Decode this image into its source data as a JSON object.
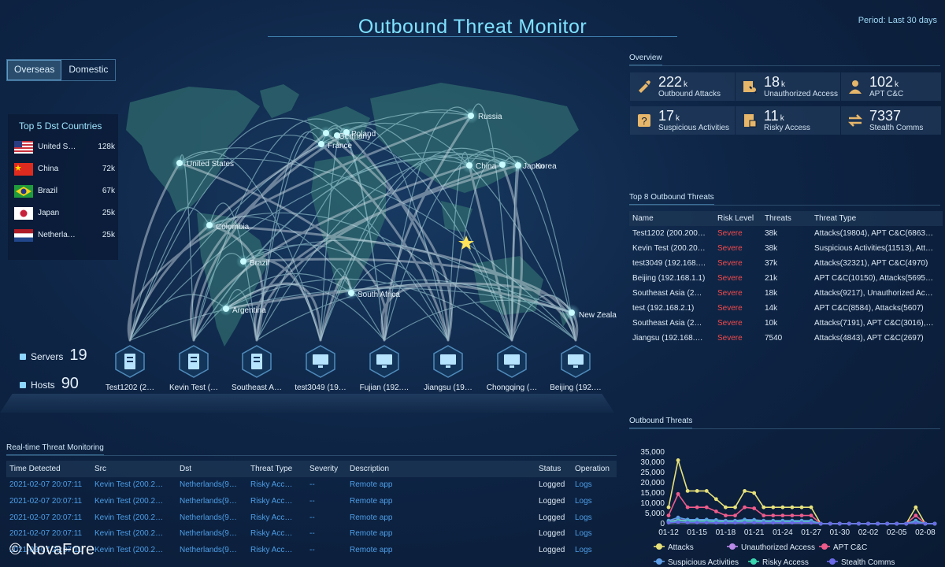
{
  "header": {
    "title": "Outbound Threat Monitor",
    "period": "Period: Last 30 days"
  },
  "region_tabs": [
    {
      "label": "Overseas",
      "active": true
    },
    {
      "label": "Domestic",
      "active": false
    }
  ],
  "top5": {
    "title": "Top 5 Dst Countries",
    "rows": [
      {
        "name": "United S…",
        "value": "128k",
        "flag": "us-flag-icon"
      },
      {
        "name": "China",
        "value": "72k",
        "flag": "cn-flag-icon"
      },
      {
        "name": "Brazil",
        "value": "67k",
        "flag": "br-flag-icon"
      },
      {
        "name": "Japan",
        "value": "25k",
        "flag": "jp-flag-icon"
      },
      {
        "name": "Netherla…",
        "value": "25k",
        "flag": "nl-flag-icon"
      }
    ]
  },
  "map": {
    "labels": [
      "Russia",
      "United States",
      "France",
      "Poland",
      "Germany",
      "China",
      "Japan",
      "Korea",
      "Colombia",
      "Brazil",
      "Argentina",
      "South Africa",
      "New Zeala"
    ]
  },
  "assets": {
    "servers_label": "Servers",
    "servers": "19",
    "hosts_label": "Hosts",
    "hosts": "90"
  },
  "nodes": [
    {
      "label": "Test1202 (2…",
      "type": "server-icon"
    },
    {
      "label": "Kevin Test (…",
      "type": "server-icon"
    },
    {
      "label": "Southeast A…",
      "type": "server-icon"
    },
    {
      "label": "test3049 (19…",
      "type": "monitor-icon"
    },
    {
      "label": "Fujian (192.…",
      "type": "monitor-icon"
    },
    {
      "label": "Jiangsu (19…",
      "type": "monitor-icon"
    },
    {
      "label": "Chongqing (…",
      "type": "monitor-icon"
    },
    {
      "label": "Beijing (192.…",
      "type": "monitor-icon"
    }
  ],
  "overview": {
    "title": "Overview",
    "cards": [
      {
        "num": "222",
        "unit": "k",
        "label": "Outbound Attacks",
        "icon": "attack-icon"
      },
      {
        "num": "18",
        "unit": "k",
        "label": "Unauthorized Access",
        "icon": "unauthorized-icon"
      },
      {
        "num": "102",
        "unit": "k",
        "label": "APT C&C",
        "icon": "apt-icon"
      },
      {
        "num": "17",
        "unit": "k",
        "label": "Suspicious Activities",
        "icon": "suspicious-icon"
      },
      {
        "num": "11",
        "unit": "k",
        "label": "Risky Access",
        "icon": "risky-icon"
      },
      {
        "num": "7337",
        "unit": "",
        "label": "Stealth Comms",
        "icon": "stealth-icon"
      }
    ]
  },
  "top8": {
    "title": "Top 8 Outbound Threats",
    "columns": [
      "Name",
      "Risk Level",
      "Threats",
      "Threat Type"
    ],
    "rows": [
      [
        "Test1202 (200.200…",
        "Severe",
        "38k",
        "Attacks(19804), APT C&C(6863…"
      ],
      [
        "Kevin Test (200.20…",
        "Severe",
        "38k",
        "Suspicious Activities(11513), Att…"
      ],
      [
        "test3049 (192.168.…",
        "Severe",
        "37k",
        "Attacks(32321), APT C&C(4970)"
      ],
      [
        "Beijing (192.168.1.1)",
        "Severe",
        "21k",
        "APT C&C(10150), Attacks(5695…"
      ],
      [
        "Southeast Asia (2…",
        "Severe",
        "18k",
        "Attacks(9217), Unauthorized Ac…"
      ],
      [
        "test (192.168.2.1)",
        "Severe",
        "14k",
        "APT C&C(8584), Attacks(5607)"
      ],
      [
        "Southeast Asia (2…",
        "Severe",
        "10k",
        "Attacks(7191), APT C&C(3016),…"
      ],
      [
        "Jiangsu (192.168.…",
        "Severe",
        "7540",
        "Attacks(4843), APT C&C(2697)"
      ]
    ]
  },
  "realtime": {
    "title": "Real-time Threat Monitoring",
    "columns": [
      "Time Detected",
      "Src",
      "Dst",
      "Threat Type",
      "Severity",
      "Description",
      "Status",
      "Operation"
    ],
    "rows": [
      [
        "2021-02-07 20:07:11",
        "Kevin Test (200.2…",
        "Netherlands(9…",
        "Risky Acc…",
        "--",
        "Remote app",
        "Logged",
        "Logs"
      ],
      [
        "2021-02-07 20:07:11",
        "Kevin Test (200.2…",
        "Netherlands(9…",
        "Risky Acc…",
        "--",
        "Remote app",
        "Logged",
        "Logs"
      ],
      [
        "2021-02-07 20:07:11",
        "Kevin Test (200.2…",
        "Netherlands(9…",
        "Risky Acc…",
        "--",
        "Remote app",
        "Logged",
        "Logs"
      ],
      [
        "2021-02-07 20:07:11",
        "Kevin Test (200.2…",
        "Netherlands(9…",
        "Risky Acc…",
        "--",
        "Remote app",
        "Logged",
        "Logs"
      ],
      [
        "2021-02-07 20:07:11",
        "Kevin Test (200.2…",
        "Netherlands(9…",
        "Risky Acc…",
        "--",
        "Remote app",
        "Logged",
        "Logs"
      ]
    ]
  },
  "watermark": "© NovaFore",
  "chart_data": {
    "type": "line",
    "title": "Outbound Threats",
    "x": [
      "01-12",
      "01-13",
      "01-14",
      "01-15",
      "01-16",
      "01-17",
      "01-18",
      "01-19",
      "01-20",
      "01-21",
      "01-22",
      "01-23",
      "01-24",
      "01-25",
      "01-26",
      "01-27",
      "01-28",
      "01-29",
      "01-30",
      "01-31",
      "02-01",
      "02-02",
      "02-03",
      "02-04",
      "02-05",
      "02-06",
      "02-07",
      "02-08",
      "02-09"
    ],
    "x_tick_labels": [
      "01-12",
      "01-15",
      "01-18",
      "01-21",
      "01-24",
      "01-27",
      "01-30",
      "02-02",
      "02-05",
      "02-08"
    ],
    "y_tick_labels": [
      "35,000",
      "30,000",
      "25,000",
      "20,000",
      "15,000",
      "10,000",
      "5,000",
      "0"
    ],
    "ylim": [
      0,
      35000
    ],
    "series": [
      {
        "name": "Attacks",
        "color": "#e8e27a",
        "values": [
          8000,
          31000,
          16000,
          16000,
          16000,
          12000,
          8000,
          8000,
          16000,
          15000,
          8000,
          8000,
          8000,
          8000,
          8000,
          8000,
          0,
          0,
          0,
          0,
          0,
          0,
          0,
          0,
          0,
          0,
          8000,
          0,
          0
        ]
      },
      {
        "name": "Unauthorized Access",
        "color": "#b98ae8",
        "values": [
          1000,
          2000,
          1500,
          1500,
          1500,
          1200,
          1000,
          1000,
          1500,
          1400,
          1000,
          1000,
          1000,
          1000,
          1000,
          1000,
          0,
          0,
          0,
          0,
          0,
          0,
          0,
          0,
          0,
          0,
          1000,
          0,
          0
        ]
      },
      {
        "name": "APT C&C",
        "color": "#ef5c8c",
        "values": [
          4000,
          14500,
          8000,
          8000,
          8000,
          6000,
          4000,
          4000,
          8000,
          7500,
          4000,
          4000,
          4000,
          4000,
          4000,
          4000,
          0,
          0,
          0,
          0,
          0,
          0,
          0,
          0,
          0,
          0,
          4000,
          0,
          0
        ]
      },
      {
        "name": "Suspicious Activities",
        "color": "#5e9ee8",
        "values": [
          1500,
          3000,
          2000,
          2000,
          2000,
          1800,
          1500,
          1500,
          2000,
          1900,
          1500,
          1500,
          1500,
          1500,
          1500,
          1500,
          0,
          0,
          0,
          0,
          0,
          0,
          0,
          0,
          0,
          0,
          1500,
          0,
          0
        ]
      },
      {
        "name": "Risky Access",
        "color": "#3ad6b0",
        "values": [
          800,
          1500,
          1200,
          1200,
          1200,
          1000,
          800,
          800,
          1200,
          1100,
          800,
          800,
          800,
          800,
          800,
          800,
          0,
          0,
          0,
          0,
          0,
          0,
          0,
          0,
          0,
          0,
          800,
          0,
          0
        ]
      },
      {
        "name": "Stealth Comms",
        "color": "#6a6ae8",
        "values": [
          500,
          800,
          600,
          600,
          600,
          500,
          500,
          500,
          600,
          600,
          500,
          500,
          500,
          500,
          500,
          500,
          0,
          0,
          0,
          0,
          0,
          0,
          0,
          0,
          0,
          0,
          500,
          0,
          0
        ]
      }
    ]
  }
}
